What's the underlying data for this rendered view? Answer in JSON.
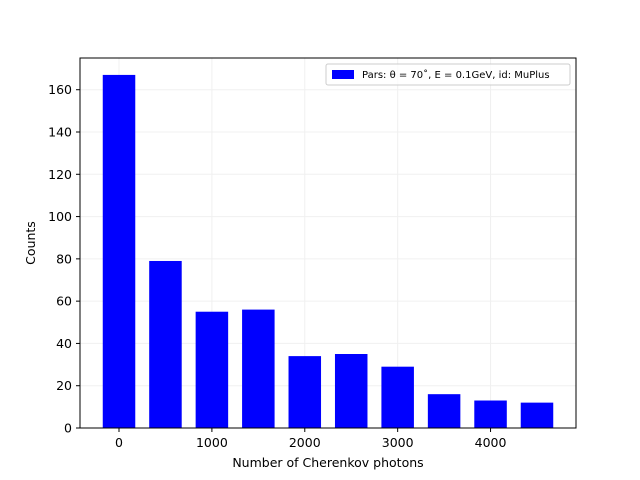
{
  "chart_data": {
    "type": "bar",
    "title": "",
    "xlabel": "Number of Cherenkov photons",
    "ylabel": "Counts",
    "x": [
      0,
      500,
      1000,
      1500,
      2000,
      2500,
      3000,
      3500,
      4000,
      4500
    ],
    "values": [
      167,
      79,
      55,
      56,
      34,
      35,
      29,
      16,
      13,
      12
    ],
    "bar_width": 350,
    "xlim": [
      -420,
      4920
    ],
    "ylim": [
      0,
      175
    ],
    "xticks": [
      0,
      1000,
      2000,
      3000,
      4000
    ],
    "xtick_labels": [
      "0",
      "1000",
      "2000",
      "3000",
      "4000"
    ],
    "yticks": [
      0,
      20,
      40,
      60,
      80,
      100,
      120,
      140,
      160
    ],
    "ytick_labels": [
      "0",
      "20",
      "40",
      "60",
      "80",
      "100",
      "120",
      "140",
      "160"
    ],
    "grid": true,
    "legend": {
      "placement": "top-right",
      "label": "Pars: θ = 70˚, E = 0.1GeV, id: MuPlus"
    },
    "series": [
      {
        "name": "Pars: θ = 70˚, E = 0.1GeV, id: MuPlus",
        "color": "#0000ff"
      }
    ]
  }
}
